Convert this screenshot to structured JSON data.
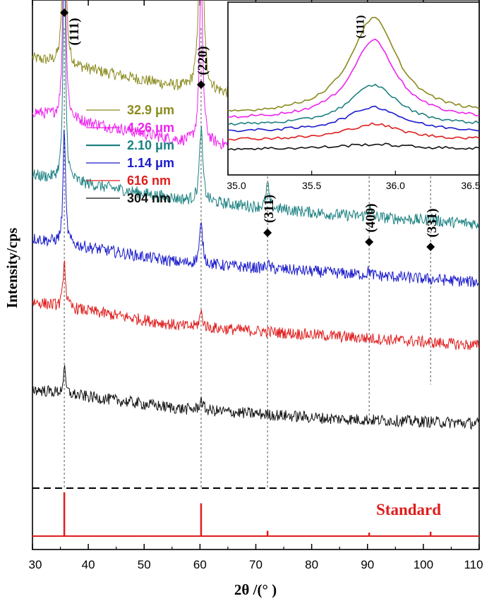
{
  "chart_data": [
    {
      "type": "line",
      "xlabel": "2θ /(° )",
      "ylabel": "Intensity/cps",
      "xlim": [
        30,
        110
      ],
      "xticks": [
        "30",
        "40",
        "50",
        "60",
        "70",
        "80",
        "90",
        "100",
        "110"
      ],
      "grid": false,
      "legend_position": "upper-left",
      "peaks": [
        {
          "label": "(111)",
          "x": 35.7
        },
        {
          "label": "(220)",
          "x": 60.2
        },
        {
          "label": "(311)",
          "x": 72.1
        },
        {
          "label": "(400)",
          "x": 90.3
        },
        {
          "label": "(331)",
          "x": 101.3
        }
      ],
      "series": [
        {
          "name": "32.9 μm",
          "color": "#8a8a1e",
          "baseline": [
            0.88,
            0.82,
            0.78,
            0.75
          ],
          "peak_heights": [
            0.6,
            0.58,
            0.1,
            0.06,
            0.05
          ]
        },
        {
          "name": "4.26 μm",
          "color": "#ee22ee",
          "baseline": [
            0.77,
            0.71,
            0.68,
            0.66
          ],
          "peak_heights": [
            0.55,
            0.34,
            0.12,
            0.06,
            0.03
          ]
        },
        {
          "name": "2.10 μm",
          "color": "#1b8080",
          "baseline": [
            0.64,
            0.59,
            0.56,
            0.54
          ],
          "peak_heights": [
            0.5,
            0.15,
            0.05,
            0.02,
            0.01
          ]
        },
        {
          "name": "1.14 μm",
          "color": "#1a1acc",
          "baseline": [
            0.51,
            0.46,
            0.44,
            0.42
          ],
          "peak_heights": [
            0.24,
            0.08,
            0.01,
            0.01,
            0.0
          ]
        },
        {
          "name": "616 nm",
          "color": "#e01c1c",
          "baseline": [
            0.38,
            0.33,
            0.31,
            0.29
          ],
          "peak_heights": [
            0.1,
            0.03,
            0.0,
            0.0,
            0.0
          ]
        },
        {
          "name": "304 nm",
          "color": "#111111",
          "baseline": [
            0.2,
            0.16,
            0.14,
            0.13
          ],
          "peak_heights": [
            0.05,
            0.02,
            0.0,
            0.0,
            0.0
          ]
        }
      ],
      "standard": {
        "label": "Standard",
        "color": "#e01c1c",
        "lines": [
          {
            "x": 35.7,
            "height": 1.0
          },
          {
            "x": 60.2,
            "height": 0.75
          },
          {
            "x": 72.1,
            "height": 0.12
          },
          {
            "x": 90.3,
            "height": 0.08
          },
          {
            "x": 101.3,
            "height": 0.1
          }
        ]
      }
    },
    {
      "type": "line",
      "title": "inset",
      "xlim": [
        35.0,
        36.5
      ],
      "xticks": [
        "35.0",
        "35.5",
        "36.0",
        "36.5"
      ],
      "peak_label": "(111)",
      "peak_x": 35.87,
      "series": [
        {
          "name": "32.9 μm",
          "color": "#8a8a1e",
          "base": 0.35,
          "height": 0.62,
          "width": 0.17
        },
        {
          "name": "4.26 μm",
          "color": "#ee22ee",
          "base": 0.32,
          "height": 0.51,
          "width": 0.16
        },
        {
          "name": "2.10 μm",
          "color": "#1b8080",
          "base": 0.28,
          "height": 0.26,
          "width": 0.18
        },
        {
          "name": "1.14 μm",
          "color": "#1a1acc",
          "base": 0.24,
          "height": 0.16,
          "width": 0.2
        },
        {
          "name": "616 nm",
          "color": "#e01c1c",
          "base": 0.19,
          "height": 0.1,
          "width": 0.2
        },
        {
          "name": "304 nm",
          "color": "#111111",
          "base": 0.13,
          "height": 0.03,
          "width": 0.25
        }
      ]
    }
  ]
}
